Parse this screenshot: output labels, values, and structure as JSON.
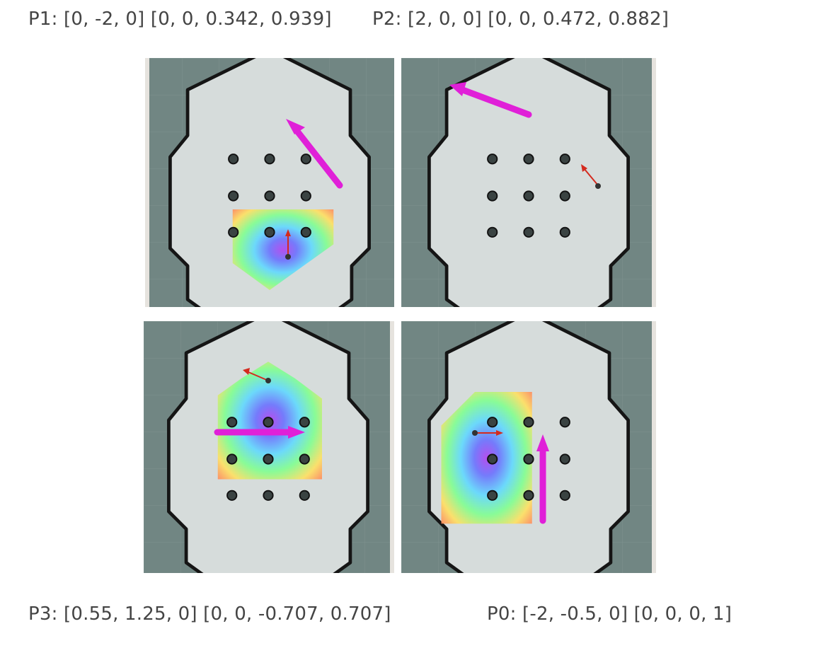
{
  "captions": {
    "p1": "P1: [0, -2, 0] [0, 0, 0.342, 0.939]",
    "p2": "P2: [2, 0, 0] [0, 0, 0.472, 0.882]",
    "p3": "P3: [0.55, 1.25, 0] [0, 0, -0.707, 0.707]",
    "p0": "P0: [-2, -0.5, 0] [0, 0, 0, 1]"
  },
  "colors": {
    "background": "#718683",
    "free_space": "#d6dcdb",
    "wall": "#151515",
    "goal_arrow": "#e020d8",
    "pose_arrow": "#d42a1e"
  },
  "panels": [
    {
      "id": "p1",
      "goal_arrow": "magenta",
      "pose_arrow": "red",
      "costmap": "visible"
    },
    {
      "id": "p2",
      "goal_arrow": "magenta",
      "pose_arrow": "red",
      "costmap": "hidden"
    },
    {
      "id": "p3",
      "goal_arrow": "magenta",
      "pose_arrow": "red",
      "costmap": "visible"
    },
    {
      "id": "p0",
      "goal_arrow": "magenta",
      "pose_arrow": "red",
      "costmap": "visible"
    }
  ]
}
